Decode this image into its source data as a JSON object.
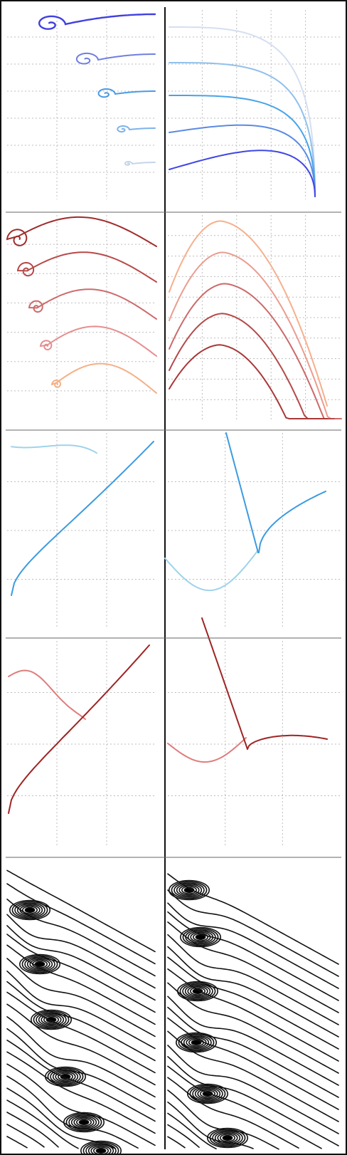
{
  "figure": {
    "rows": 5,
    "columns": 2,
    "has_outer_frame": true,
    "has_vertical_divider": true
  },
  "palette": {
    "blue_spirals": [
      "#c6d5ea",
      "#7fb3ea",
      "#4a9be3",
      "#6f7fe0",
      "#4040e0"
    ],
    "blue_branches": [
      "#d5dff0",
      "#90c0ec",
      "#48a4e8",
      "#5b8be3",
      "#3f47e4"
    ],
    "red_spirals": [
      "#a02c2c",
      "#b84848",
      "#cd6b6b",
      "#e68e8e",
      "#f4b087"
    ],
    "red_branches": [
      "#f6b08d",
      "#ea9d90",
      "#cb6a6a",
      "#b44a4a",
      "#a83737"
    ],
    "cyan_light": "#9fd3ea",
    "cyan_dark": "#3c9be0",
    "red_light": "#e07c7c",
    "red_dark": "#9e2424",
    "contour": "#111111",
    "grid": "#bdbdbd",
    "frame": "#111111"
  },
  "panels": [
    {
      "id": "spirals-blue",
      "kind": "spiral",
      "family": "blue",
      "curves": 5
    },
    {
      "id": "branches-blue",
      "kind": "branch",
      "family": "blue",
      "curves": 5
    },
    {
      "id": "spirals-red",
      "kind": "spiral",
      "family": "red",
      "curves": 5
    },
    {
      "id": "branches-red",
      "kind": "branch",
      "family": "red",
      "curves": 5
    },
    {
      "id": "cusp-cyan-left",
      "kind": "cusp",
      "family": "cyan",
      "curves": 2
    },
    {
      "id": "cusp-cyan-right",
      "kind": "cusp",
      "family": "cyan",
      "curves": 2
    },
    {
      "id": "cusp-red-left",
      "kind": "cusp",
      "family": "red",
      "curves": 2
    },
    {
      "id": "cusp-red-right",
      "kind": "cusp",
      "family": "red",
      "curves": 2
    },
    {
      "id": "contours-left",
      "kind": "contour",
      "centers": 6
    },
    {
      "id": "contours-right",
      "kind": "contour",
      "centers": 6
    }
  ]
}
